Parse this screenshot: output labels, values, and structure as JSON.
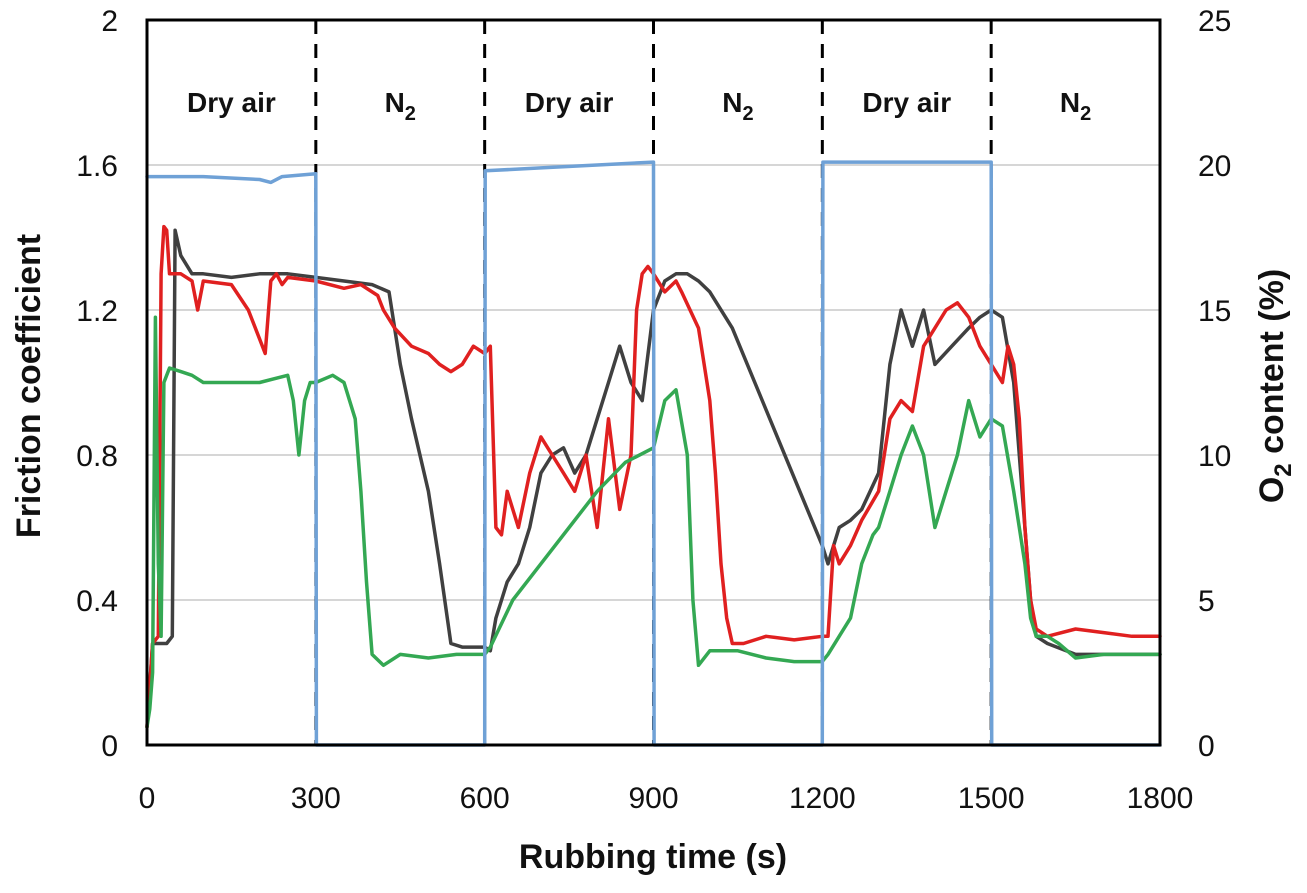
{
  "chart_data": {
    "type": "line",
    "xlabel": "Rubbing time (s)",
    "ylabel": "Friction coefficient",
    "y2label": "O2 content (%)",
    "xlim": [
      0,
      1800
    ],
    "ylim": [
      0,
      2
    ],
    "y2lim": [
      0,
      25
    ],
    "x_ticks": [
      0,
      300,
      600,
      900,
      1200,
      1500,
      1800
    ],
    "y_ticks": [
      "0",
      "0.4",
      "0.8",
      "1.2",
      "1.6",
      "2"
    ],
    "y2_ticks": [
      "0",
      "5",
      "10",
      "15",
      "20",
      "25"
    ],
    "y_tick_values": [
      0,
      0.4,
      0.8,
      1.2,
      1.6,
      2.0
    ],
    "y2_tick_values": [
      0,
      5,
      10,
      15,
      20,
      25
    ],
    "grid": "horizontal",
    "phase_boundaries": [
      300,
      600,
      900,
      1200,
      1500
    ],
    "phases": [
      {
        "label": "Dry air",
        "x": 150
      },
      {
        "label": "N2",
        "x": 450
      },
      {
        "label": "Dry air",
        "x": 750
      },
      {
        "label": "N2",
        "x": 1050
      },
      {
        "label": "Dry air",
        "x": 1350
      },
      {
        "label": "N2",
        "x": 1650
      }
    ],
    "series": [
      {
        "color": "#404040",
        "axis": "left",
        "x": [
          0,
          10,
          25,
          35,
          45,
          50,
          60,
          80,
          100,
          150,
          200,
          250,
          300,
          350,
          400,
          430,
          450,
          470,
          500,
          520,
          540,
          560,
          580,
          600,
          610,
          620,
          640,
          660,
          680,
          700,
          720,
          740,
          760,
          780,
          800,
          820,
          840,
          860,
          880,
          900,
          920,
          940,
          960,
          980,
          1000,
          1040,
          1080,
          1120,
          1160,
          1200,
          1210,
          1230,
          1250,
          1270,
          1300,
          1320,
          1340,
          1360,
          1380,
          1400,
          1430,
          1460,
          1480,
          1500,
          1520,
          1540,
          1560,
          1570,
          1580,
          1600,
          1650,
          1700,
          1750,
          1800
        ],
        "y": [
          0.05,
          0.28,
          0.28,
          0.28,
          0.3,
          1.42,
          1.35,
          1.3,
          1.3,
          1.29,
          1.3,
          1.3,
          1.29,
          1.28,
          1.27,
          1.25,
          1.05,
          0.9,
          0.7,
          0.5,
          0.28,
          0.27,
          0.27,
          0.27,
          0.26,
          0.35,
          0.45,
          0.5,
          0.6,
          0.75,
          0.8,
          0.82,
          0.75,
          0.8,
          0.9,
          1.0,
          1.1,
          1.0,
          0.95,
          1.2,
          1.28,
          1.3,
          1.3,
          1.28,
          1.25,
          1.15,
          1.0,
          0.85,
          0.7,
          0.55,
          0.5,
          0.6,
          0.62,
          0.65,
          0.75,
          1.05,
          1.2,
          1.1,
          1.2,
          1.05,
          1.1,
          1.15,
          1.18,
          1.2,
          1.18,
          1.0,
          0.6,
          0.4,
          0.3,
          0.28,
          0.25,
          0.25,
          0.25,
          0.25
        ]
      },
      {
        "color": "#e02020",
        "axis": "left",
        "x": [
          0,
          10,
          20,
          25,
          30,
          35,
          40,
          60,
          80,
          90,
          100,
          150,
          180,
          200,
          210,
          220,
          230,
          240,
          250,
          300,
          350,
          380,
          400,
          410,
          420,
          440,
          470,
          500,
          520,
          540,
          560,
          580,
          600,
          610,
          620,
          630,
          640,
          660,
          680,
          700,
          720,
          740,
          760,
          780,
          800,
          820,
          840,
          860,
          870,
          880,
          890,
          900,
          920,
          940,
          950,
          980,
          1000,
          1010,
          1020,
          1030,
          1040,
          1060,
          1100,
          1150,
          1200,
          1210,
          1220,
          1230,
          1250,
          1270,
          1300,
          1320,
          1340,
          1360,
          1380,
          1400,
          1420,
          1440,
          1460,
          1480,
          1500,
          1520,
          1530,
          1540,
          1550,
          1560,
          1570,
          1580,
          1600,
          1650,
          1700,
          1750,
          1800
        ],
        "y": [
          0.05,
          0.28,
          0.3,
          1.3,
          1.43,
          1.42,
          1.3,
          1.3,
          1.28,
          1.2,
          1.28,
          1.27,
          1.2,
          1.12,
          1.08,
          1.28,
          1.3,
          1.27,
          1.29,
          1.28,
          1.26,
          1.27,
          1.25,
          1.24,
          1.2,
          1.15,
          1.1,
          1.08,
          1.05,
          1.03,
          1.05,
          1.1,
          1.08,
          1.1,
          0.6,
          0.58,
          0.7,
          0.6,
          0.75,
          0.85,
          0.8,
          0.75,
          0.7,
          0.8,
          0.6,
          0.9,
          0.65,
          0.8,
          1.2,
          1.3,
          1.32,
          1.3,
          1.25,
          1.28,
          1.25,
          1.15,
          0.95,
          0.75,
          0.5,
          0.35,
          0.28,
          0.28,
          0.3,
          0.29,
          0.3,
          0.3,
          0.55,
          0.5,
          0.55,
          0.62,
          0.7,
          0.9,
          0.95,
          0.92,
          1.1,
          1.15,
          1.2,
          1.22,
          1.18,
          1.1,
          1.05,
          1.0,
          1.1,
          1.05,
          0.9,
          0.6,
          0.4,
          0.32,
          0.3,
          0.32,
          0.31,
          0.3,
          0.3
        ]
      },
      {
        "color": "#34a853",
        "axis": "left",
        "x": [
          0,
          5,
          10,
          15,
          20,
          25,
          30,
          40,
          60,
          80,
          100,
          150,
          200,
          250,
          260,
          270,
          280,
          290,
          300,
          330,
          350,
          370,
          380,
          390,
          400,
          420,
          450,
          500,
          550,
          600,
          610,
          650,
          700,
          750,
          800,
          850,
          900,
          920,
          940,
          960,
          970,
          980,
          1000,
          1050,
          1100,
          1150,
          1200,
          1210,
          1230,
          1250,
          1270,
          1290,
          1300,
          1320,
          1340,
          1360,
          1380,
          1400,
          1420,
          1440,
          1460,
          1480,
          1500,
          1520,
          1540,
          1560,
          1570,
          1580,
          1600,
          1620,
          1650,
          1700,
          1750,
          1800
        ],
        "y": [
          0.05,
          0.1,
          0.2,
          1.18,
          0.5,
          0.3,
          1.0,
          1.04,
          1.03,
          1.02,
          1.0,
          1.0,
          1.0,
          1.02,
          0.95,
          0.8,
          0.95,
          1.0,
          1.0,
          1.02,
          1.0,
          0.9,
          0.7,
          0.45,
          0.25,
          0.22,
          0.25,
          0.24,
          0.25,
          0.25,
          0.27,
          0.4,
          0.5,
          0.6,
          0.7,
          0.78,
          0.82,
          0.95,
          0.98,
          0.8,
          0.4,
          0.22,
          0.26,
          0.26,
          0.24,
          0.23,
          0.23,
          0.25,
          0.3,
          0.35,
          0.5,
          0.58,
          0.6,
          0.7,
          0.8,
          0.88,
          0.8,
          0.6,
          0.7,
          0.8,
          0.95,
          0.85,
          0.9,
          0.88,
          0.7,
          0.5,
          0.35,
          0.3,
          0.3,
          0.28,
          0.24,
          0.25,
          0.25,
          0.25
        ]
      },
      {
        "color": "#6fa1d6",
        "axis": "right",
        "x": [
          0,
          1,
          100,
          200,
          220,
          240,
          300,
          301,
          599,
          600,
          601,
          700,
          800,
          900,
          901,
          1199,
          1200,
          1201,
          1300,
          1400,
          1500,
          1501,
          1800
        ],
        "y": [
          19.6,
          19.6,
          19.6,
          19.5,
          19.4,
          19.6,
          19.7,
          0,
          0,
          0,
          19.8,
          19.9,
          20.0,
          20.1,
          0,
          0,
          0,
          20.1,
          20.1,
          20.1,
          20.1,
          0,
          0
        ]
      }
    ]
  }
}
